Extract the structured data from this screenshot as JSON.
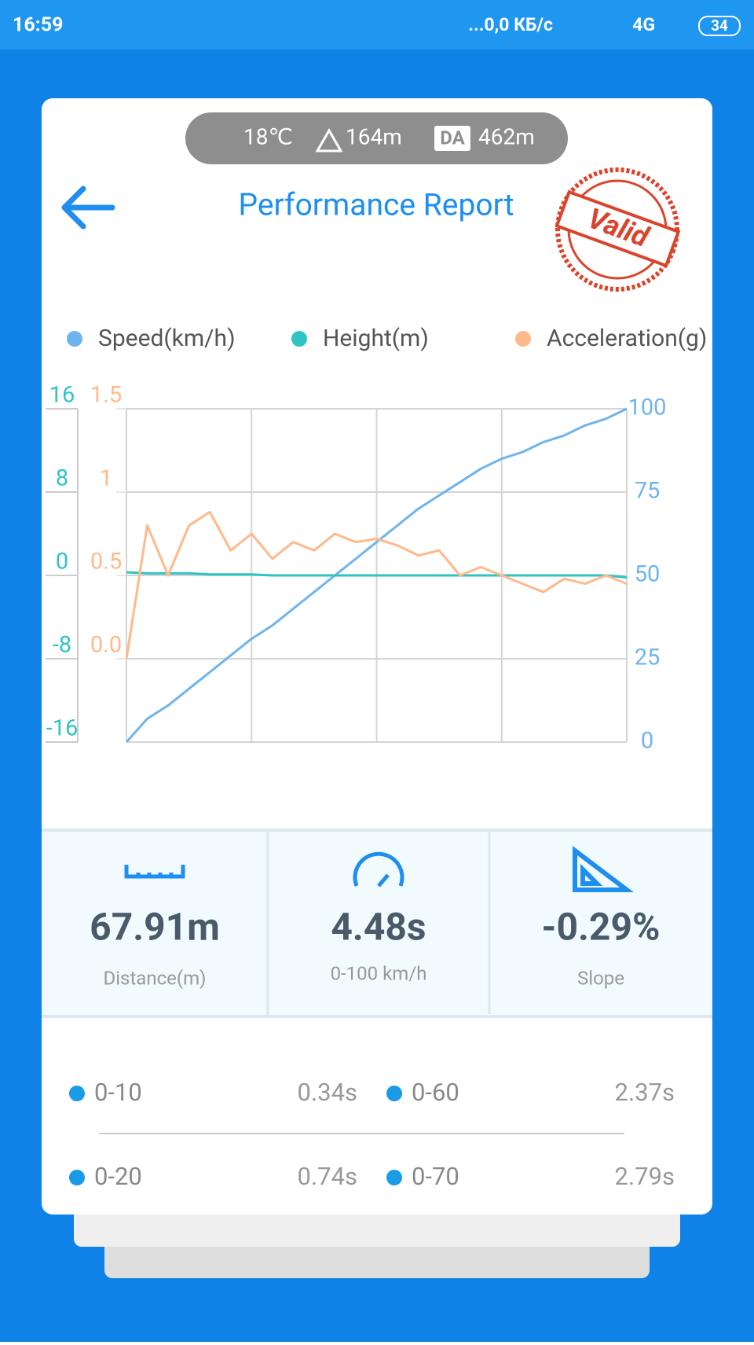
{
  "status_bar": {
    "time": "16:59",
    "network": "...0,0 КБ/с",
    "signal": "4G",
    "battery": "34"
  },
  "weather": {
    "temperature": "18℃",
    "altitude": "164m",
    "da_label": "DA",
    "density_altitude": "462m"
  },
  "header": {
    "title": "Performance Report",
    "stamp": "Valid"
  },
  "chart_data": {
    "type": "line",
    "series": [
      {
        "name": "Speed(km/h)",
        "color": "#6fb4ec",
        "axis": "y3",
        "values": [
          0,
          7,
          11,
          16,
          21,
          26,
          31,
          35,
          40,
          45,
          50,
          55,
          60,
          65,
          70,
          74,
          78,
          82,
          85,
          87,
          90,
          92,
          95,
          97,
          100
        ]
      },
      {
        "name": "Height(m)",
        "color": "#2ec4c4",
        "axis": "y",
        "values": [
          0.3,
          0.2,
          0.2,
          0.2,
          0.1,
          0.1,
          0.1,
          0,
          0,
          0,
          0,
          0,
          0,
          0,
          0,
          0,
          0,
          0,
          0,
          0,
          0,
          0,
          0,
          0,
          -0.2
        ]
      },
      {
        "name": "Acceleration(g)",
        "color": "#ffb98a",
        "axis": "y2",
        "values": [
          0,
          0.8,
          0.5,
          0.8,
          0.88,
          0.65,
          0.75,
          0.6,
          0.7,
          0.65,
          0.75,
          0.7,
          0.72,
          0.68,
          0.62,
          0.65,
          0.5,
          0.55,
          0.5,
          0.45,
          0.4,
          0.48,
          0.45,
          0.5,
          0.45
        ]
      }
    ],
    "ylim": [
      -16,
      16
    ],
    "yticks": [
      16,
      8,
      0,
      -8,
      -16
    ],
    "y2lim": [
      -0.5,
      1.5
    ],
    "y2ticks": [
      1.5,
      1,
      0.5,
      {
        "value": 0,
        "label": "0.0"
      }
    ],
    "y3lim": [
      0,
      100
    ],
    "y3ticks": [
      100,
      75,
      50,
      25,
      0
    ],
    "grid": true
  },
  "stats": [
    {
      "value": "67.91m",
      "label": "Distance(m)"
    },
    {
      "value": "4.48s",
      "label": "0-100 km/h"
    },
    {
      "value": "-0.29%",
      "label": "Slope"
    }
  ],
  "splits": [
    [
      {
        "label": "0-10",
        "time": "0.34s"
      },
      {
        "label": "0-60",
        "time": "2.37s"
      }
    ],
    [
      {
        "label": "0-20",
        "time": "0.74s"
      },
      {
        "label": "0-70",
        "time": "2.79s"
      }
    ]
  ]
}
